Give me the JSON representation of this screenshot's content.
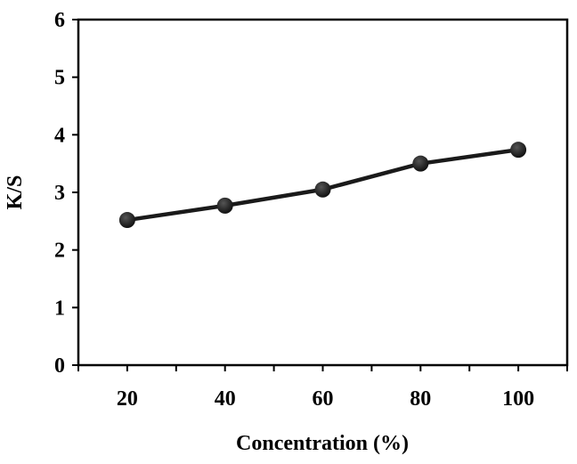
{
  "chart_data": {
    "type": "line",
    "title": "",
    "xlabel": "Concentration (%)",
    "ylabel": "K/S",
    "x": [
      20,
      40,
      60,
      80,
      100
    ],
    "x_tick_labels": [
      "20",
      "40",
      "60",
      "80",
      "100"
    ],
    "xlim": [
      10,
      110
    ],
    "ylim": [
      0,
      6
    ],
    "y_ticks": [
      0,
      1,
      2,
      3,
      4,
      5,
      6
    ],
    "y_tick_labels": [
      "0",
      "1",
      "2",
      "3",
      "4",
      "5",
      "6"
    ],
    "grid": false,
    "series": [
      {
        "values": [
          2.52,
          2.77,
          3.05,
          3.5,
          3.74
        ],
        "color": "#1a1a1a",
        "marker": "circle"
      }
    ]
  }
}
